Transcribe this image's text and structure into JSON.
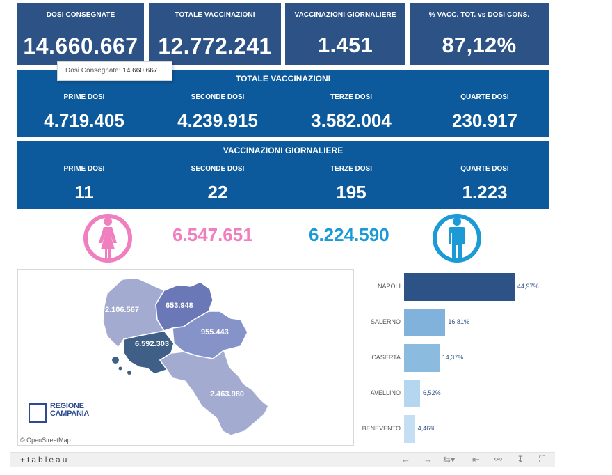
{
  "kpis": [
    {
      "label": "DOSI  CONSEGNATE",
      "value": "14.660.667"
    },
    {
      "label": "TOTALE VACCINAZIONI",
      "value": "12.772.241"
    },
    {
      "label": "VACCINAZIONI GIORNALIERE",
      "value": "1.451"
    },
    {
      "label": "% VACC. TOT. vs DOSI CONS.",
      "value": "87,12%"
    }
  ],
  "tooltip": {
    "label": "Dosi Consegnate:",
    "value": "14.660.667"
  },
  "totale_band": {
    "title": "TOTALE VACCINAZIONI",
    "items": [
      {
        "label": "PRIME DOSI",
        "value": "4.719.405"
      },
      {
        "label": "SECONDE DOSI",
        "value": "4.239.915"
      },
      {
        "label": "TERZE DOSI",
        "value": "3.582.004"
      },
      {
        "label": "QUARTE DOSI",
        "value": "230.917"
      }
    ]
  },
  "giornaliere_band": {
    "title": "VACCINAZIONI GIORNALIERE",
    "items": [
      {
        "label": "PRIME DOSI",
        "value": "11"
      },
      {
        "label": "SECONDE DOSI",
        "value": "22"
      },
      {
        "label": "TERZE DOSI",
        "value": "195"
      },
      {
        "label": "QUARTE DOSI",
        "value": "1.223"
      }
    ]
  },
  "gender": {
    "female": "6.547.651",
    "male": "6.224.590",
    "female_color": "#f07fc0",
    "male_color": "#1b9ad6"
  },
  "map": {
    "province_values": [
      "2.106.567",
      "653.948",
      "955.443",
      "6.592.303",
      "2.463.980"
    ],
    "attribution": "© OpenStreetMap",
    "logo_text": "REGIONE CAMPANIA"
  },
  "chart_data": {
    "type": "bar",
    "orientation": "horizontal",
    "categories": [
      "NAPOLI",
      "SALERNO",
      "CASERTA",
      "AVELLINO",
      "BENEVENTO"
    ],
    "values": [
      44.97,
      16.81,
      14.37,
      6.52,
      4.46
    ],
    "value_labels": [
      "44,97%",
      "16,81%",
      "14,37%",
      "6,52%",
      "4,46%"
    ],
    "colors": [
      "#2d5286",
      "#80b2dc",
      "#8cbbe0",
      "#b5d6ef",
      "#c4def3"
    ],
    "xlim": [
      0,
      50
    ]
  },
  "footer": {
    "brand": "+tableau",
    "controls": [
      "undo-icon",
      "redo-icon",
      "revert-icon",
      "reset-icon",
      "share-icon",
      "download-icon",
      "fullscreen-icon"
    ]
  }
}
